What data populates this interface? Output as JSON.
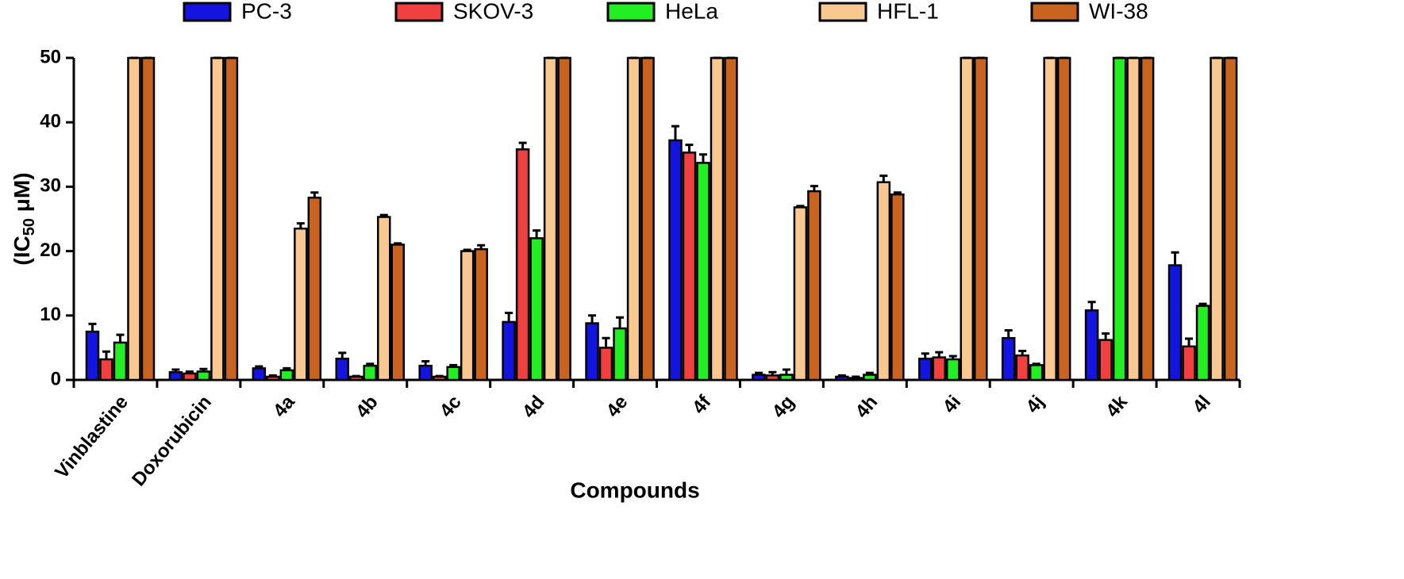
{
  "chart_data": {
    "type": "bar",
    "categories": [
      "Vinblastine",
      "Doxorubicin",
      "4a",
      "4b",
      "4c",
      "4d",
      "4e",
      "4f",
      "4g",
      "4h",
      "4i",
      "4j",
      "4k",
      "4l"
    ],
    "x_label": "Compounds",
    "y_label": [
      "(IC",
      "50",
      " μM)"
    ],
    "ylim": [
      0,
      50
    ],
    "yticks": [
      0,
      10,
      20,
      30,
      40,
      50
    ],
    "grid": false,
    "legend": "top",
    "series": [
      {
        "name": "PC-3",
        "color": "#1414e0",
        "values": [
          7.5,
          1.2,
          1.8,
          3.3,
          2.2,
          9,
          8.8,
          37.2,
          0.8,
          0.5,
          3.3,
          6.5,
          10.8,
          17.8
        ],
        "errors": [
          1.2,
          0.4,
          0.3,
          0.9,
          0.7,
          1.4,
          1.2,
          2.2,
          0.3,
          0.2,
          0.8,
          1.2,
          1.3,
          2
        ]
      },
      {
        "name": "SKOV-3",
        "color": "#f04040",
        "values": [
          3.2,
          1.0,
          0.5,
          0.5,
          0.5,
          35.8,
          5,
          35.3,
          0.7,
          0.3,
          3.5,
          3.8,
          6.2,
          5.2
        ],
        "errors": [
          1.2,
          0.3,
          0.2,
          0.1,
          0.1,
          1.0,
          1.5,
          1.2,
          0.5,
          0.2,
          0.8,
          0.7,
          1.0,
          1.2
        ]
      },
      {
        "name": "HeLa",
        "color": "#22ee22",
        "values": [
          5.8,
          1.3,
          1.5,
          2.2,
          2.0,
          22,
          8,
          33.7,
          0.8,
          0.8,
          3.2,
          2.3,
          50,
          11.5
        ],
        "errors": [
          1.2,
          0.4,
          0.3,
          0.3,
          0.3,
          1.2,
          1.7,
          1.3,
          0.8,
          0.3,
          0.5,
          0.2,
          0,
          0.3
        ]
      },
      {
        "name": "HFL-1",
        "color": "#f8c890",
        "values": [
          50,
          50,
          23.5,
          25.3,
          20,
          50,
          50,
          50,
          26.8,
          30.7,
          50,
          50,
          50,
          50
        ],
        "errors": [
          0,
          0,
          0.8,
          0.3,
          0.2,
          0,
          0,
          0,
          0.2,
          1.0,
          0,
          0,
          0,
          0
        ]
      },
      {
        "name": "WI-38",
        "color": "#c86420",
        "values": [
          50,
          50,
          28.3,
          21,
          20.3,
          50,
          50,
          50,
          29.3,
          28.8,
          50,
          50,
          50,
          50
        ],
        "errors": [
          0,
          0,
          0.8,
          0.2,
          0.6,
          0,
          0,
          0,
          0.8,
          0.3,
          0,
          0,
          0,
          0
        ]
      }
    ]
  }
}
